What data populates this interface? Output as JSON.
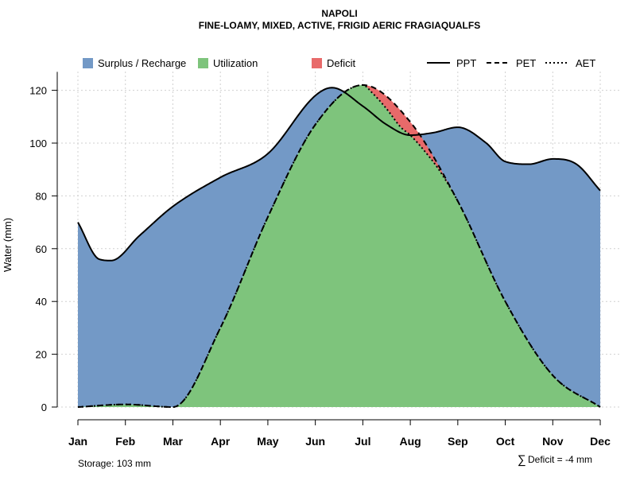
{
  "chart_data": {
    "type": "area",
    "title": "NAPOLI",
    "subtitle": "FINE-LOAMY, MIXED, ACTIVE, FRIGID AERIC FRAGIAQUALFS",
    "ylabel": "Water (mm)",
    "xlabel": "",
    "ylim": [
      0,
      127
    ],
    "yticks": [
      0,
      20,
      40,
      60,
      80,
      100,
      120
    ],
    "categories": [
      "Jan",
      "Feb",
      "Mar",
      "Apr",
      "May",
      "Jun",
      "Jul",
      "Aug",
      "Sep",
      "Oct",
      "Nov",
      "Dec"
    ],
    "grid": true,
    "legend": {
      "placement": "top",
      "areas": [
        {
          "label": "Surplus / Recharge",
          "color": "#7399c6"
        },
        {
          "label": "Utilization",
          "color": "#7ec47c"
        },
        {
          "label": "Deficit",
          "color": "#e86a6a"
        }
      ],
      "lines": [
        {
          "label": "PPT",
          "style": "solid"
        },
        {
          "label": "PET",
          "style": "dashed"
        },
        {
          "label": "AET",
          "style": "dotted"
        }
      ]
    },
    "series": [
      {
        "name": "PPT",
        "points": [
          [
            0,
            70
          ],
          [
            0.45,
            56
          ],
          [
            0.7,
            55.5
          ],
          [
            1.3,
            65
          ],
          [
            2,
            76
          ],
          [
            3,
            87
          ],
          [
            4,
            96
          ],
          [
            5,
            118
          ],
          [
            5.35,
            121
          ],
          [
            6,
            114
          ],
          [
            6.5,
            107
          ],
          [
            7,
            103
          ],
          [
            7.5,
            104
          ],
          [
            8,
            106
          ],
          [
            8.6,
            100
          ],
          [
            9,
            93
          ],
          [
            9.5,
            92
          ],
          [
            10,
            94
          ],
          [
            10.5,
            92
          ],
          [
            11,
            82
          ]
        ]
      },
      {
        "name": "PET",
        "points": [
          [
            0,
            0
          ],
          [
            1,
            1
          ],
          [
            2,
            0
          ],
          [
            3,
            30
          ],
          [
            4,
            72
          ],
          [
            5,
            107
          ],
          [
            6,
            122
          ],
          [
            7,
            108
          ],
          [
            8,
            78
          ],
          [
            9,
            40
          ],
          [
            10,
            12
          ],
          [
            11,
            0
          ]
        ]
      },
      {
        "name": "AET",
        "points": [
          [
            0,
            0
          ],
          [
            1,
            1
          ],
          [
            2,
            0
          ],
          [
            3,
            30
          ],
          [
            4,
            72
          ],
          [
            5,
            107
          ],
          [
            6,
            122
          ],
          [
            6.2,
            119
          ],
          [
            6.5,
            113
          ],
          [
            6.8,
            106
          ],
          [
            7,
            103
          ],
          [
            7.3,
            97
          ],
          [
            7.6,
            90
          ],
          [
            8,
            78
          ],
          [
            9,
            40
          ],
          [
            10,
            12
          ],
          [
            11,
            0
          ]
        ]
      }
    ],
    "footnotes": {
      "storage": "Storage: 103 mm",
      "deficit_symbol": "∑",
      "deficit": "Deficit = -4 mm"
    }
  }
}
